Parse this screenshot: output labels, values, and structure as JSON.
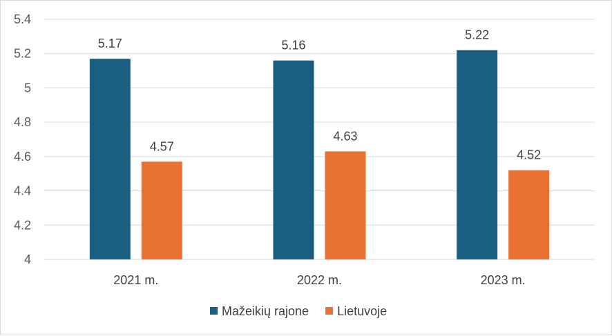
{
  "chart_data": {
    "type": "bar",
    "title": "",
    "xlabel": "",
    "ylabel": "",
    "categories": [
      "2021 m.",
      "2022 m.",
      "2023 m."
    ],
    "series": [
      {
        "name": "Mažeikių rajone",
        "color": "#1a5e82",
        "values": [
          5.17,
          5.16,
          5.22
        ],
        "labels": [
          "5.17",
          "5.16",
          "5.22"
        ]
      },
      {
        "name": "Lietuvoje",
        "color": "#e97132",
        "values": [
          4.57,
          4.63,
          4.52
        ],
        "labels": [
          "4.57",
          "4.63",
          "4.52"
        ]
      }
    ],
    "ylim": [
      4,
      5.4
    ],
    "yticks": [
      "4",
      "4.2",
      "4.4",
      "4.6",
      "4.8",
      "5",
      "5.2",
      "5.4"
    ],
    "grid": true,
    "legend_position": "bottom"
  }
}
